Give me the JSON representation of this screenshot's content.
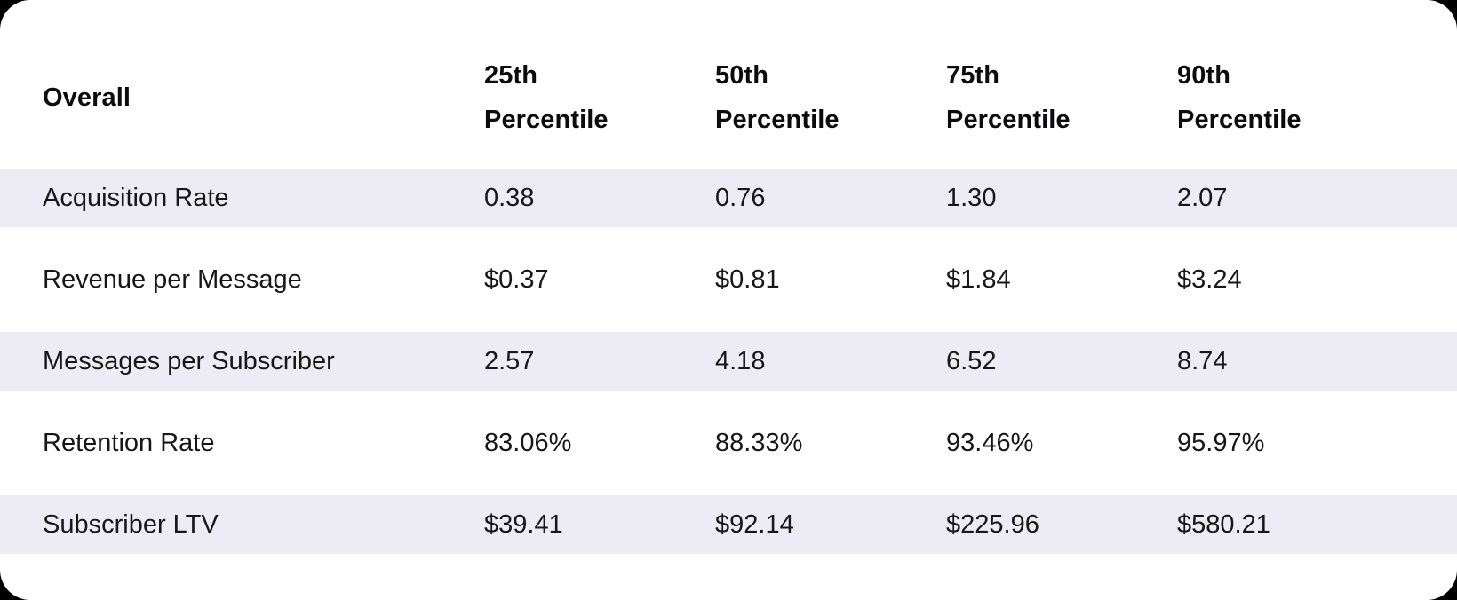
{
  "colors": {
    "page_background": "#000000",
    "card_background": "#ffffff",
    "stripe": "#edecf5",
    "header_text": "#0c0c0e",
    "body_text": "#17171a"
  },
  "table": {
    "headers": [
      "Overall",
      "25th Percentile",
      "50th Percentile",
      "75th Percentile",
      "90th Percentile"
    ],
    "rows": [
      {
        "label": "Acquisition Rate",
        "values": [
          "0.38",
          "0.76",
          "1.30",
          "2.07"
        ]
      },
      {
        "label": "Revenue per Message",
        "values": [
          "$0.37",
          "$0.81",
          "$1.84",
          "$3.24"
        ]
      },
      {
        "label": "Messages per Subscriber",
        "values": [
          "2.57",
          "4.18",
          "6.52",
          "8.74"
        ]
      },
      {
        "label": "Retention Rate",
        "values": [
          "83.06%",
          "88.33%",
          "93.46%",
          "95.97%"
        ]
      },
      {
        "label": "Subscriber LTV",
        "values": [
          "$39.41",
          "$92.14",
          "$225.96",
          "$580.21"
        ]
      }
    ]
  },
  "chart_data": {
    "type": "table",
    "title": "Overall",
    "columns": [
      "25th Percentile",
      "50th Percentile",
      "75th Percentile",
      "90th Percentile"
    ],
    "row_labels": [
      "Acquisition Rate",
      "Revenue per Message",
      "Messages per Subscriber",
      "Retention Rate",
      "Subscriber LTV"
    ],
    "rows": [
      [
        0.38,
        0.76,
        1.3,
        2.07
      ],
      [
        0.37,
        0.81,
        1.84,
        3.24
      ],
      [
        2.57,
        4.18,
        6.52,
        8.74
      ],
      [
        83.06,
        88.33,
        93.46,
        95.97
      ],
      [
        39.41,
        92.14,
        225.96,
        580.21
      ]
    ],
    "units_by_row": [
      "rate",
      "USD",
      "count",
      "percent",
      "USD"
    ],
    "layout": "striped rows (1st, 3rd, 5th) on white card, black page background"
  }
}
